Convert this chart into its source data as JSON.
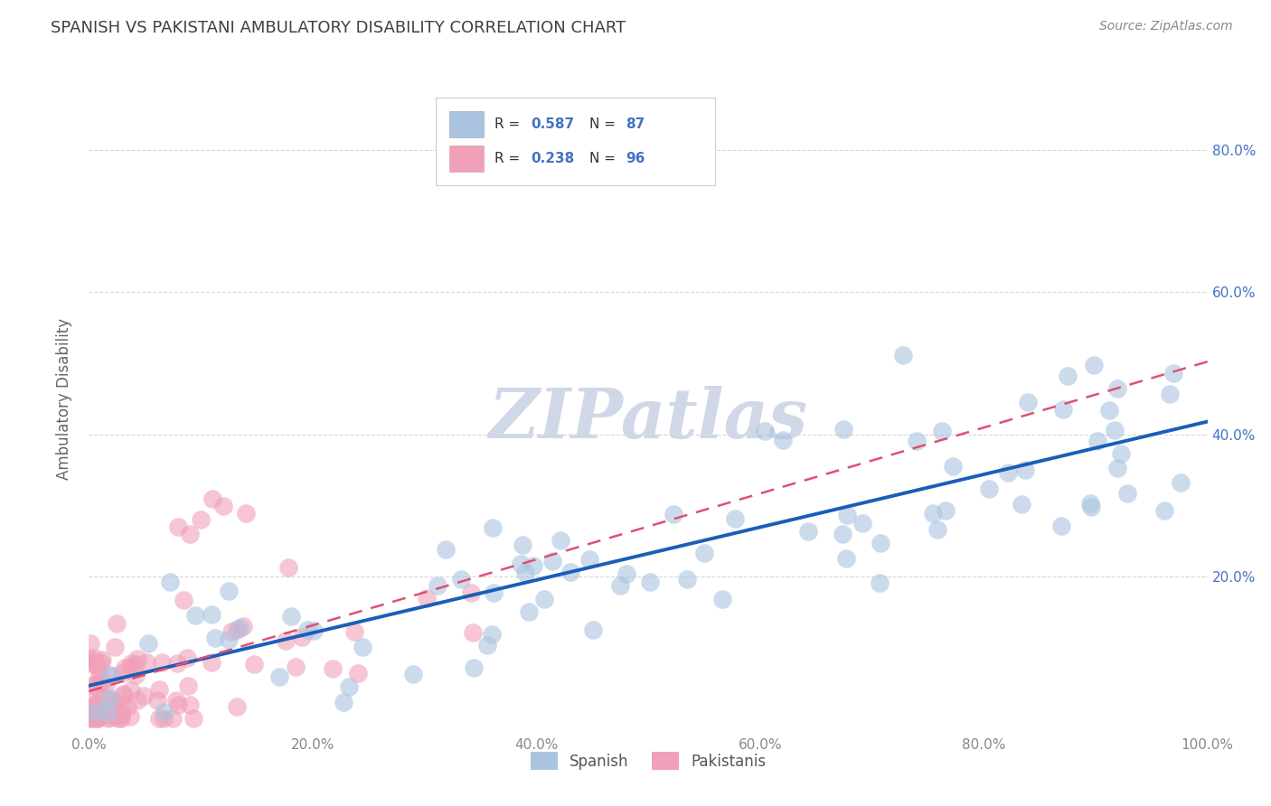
{
  "title": "SPANISH VS PAKISTANI AMBULATORY DISABILITY CORRELATION CHART",
  "source": "Source: ZipAtlas.com",
  "ylabel": "Ambulatory Disability",
  "watermark": "ZIPatlas",
  "xlim": [
    0,
    1.0
  ],
  "ylim": [
    -0.02,
    0.92
  ],
  "xticks": [
    0.0,
    0.2,
    0.4,
    0.6,
    0.8,
    1.0
  ],
  "xtick_labels": [
    "0.0%",
    "20.0%",
    "40.0%",
    "60.0%",
    "80.0%",
    "100.0%"
  ],
  "ytick_labels": [
    "20.0%",
    "40.0%",
    "60.0%",
    "80.0%"
  ],
  "ytick_vals": [
    0.2,
    0.4,
    0.6,
    0.8
  ],
  "spanish_R": 0.587,
  "spanish_N": 87,
  "pakistani_R": 0.238,
  "pakistani_N": 96,
  "spanish_color": "#aac4e0",
  "pakistani_color": "#f0a0b8",
  "spanish_line_color": "#1a5eb8",
  "pakistani_line_color": "#e05070",
  "background_color": "#ffffff",
  "grid_color": "#cccccc",
  "title_color": "#404040",
  "right_label_color": "#4472c4",
  "watermark_color": "#d0d8e8",
  "legend_r_color": "#4472c4",
  "legend_n_color": "#4472c4"
}
